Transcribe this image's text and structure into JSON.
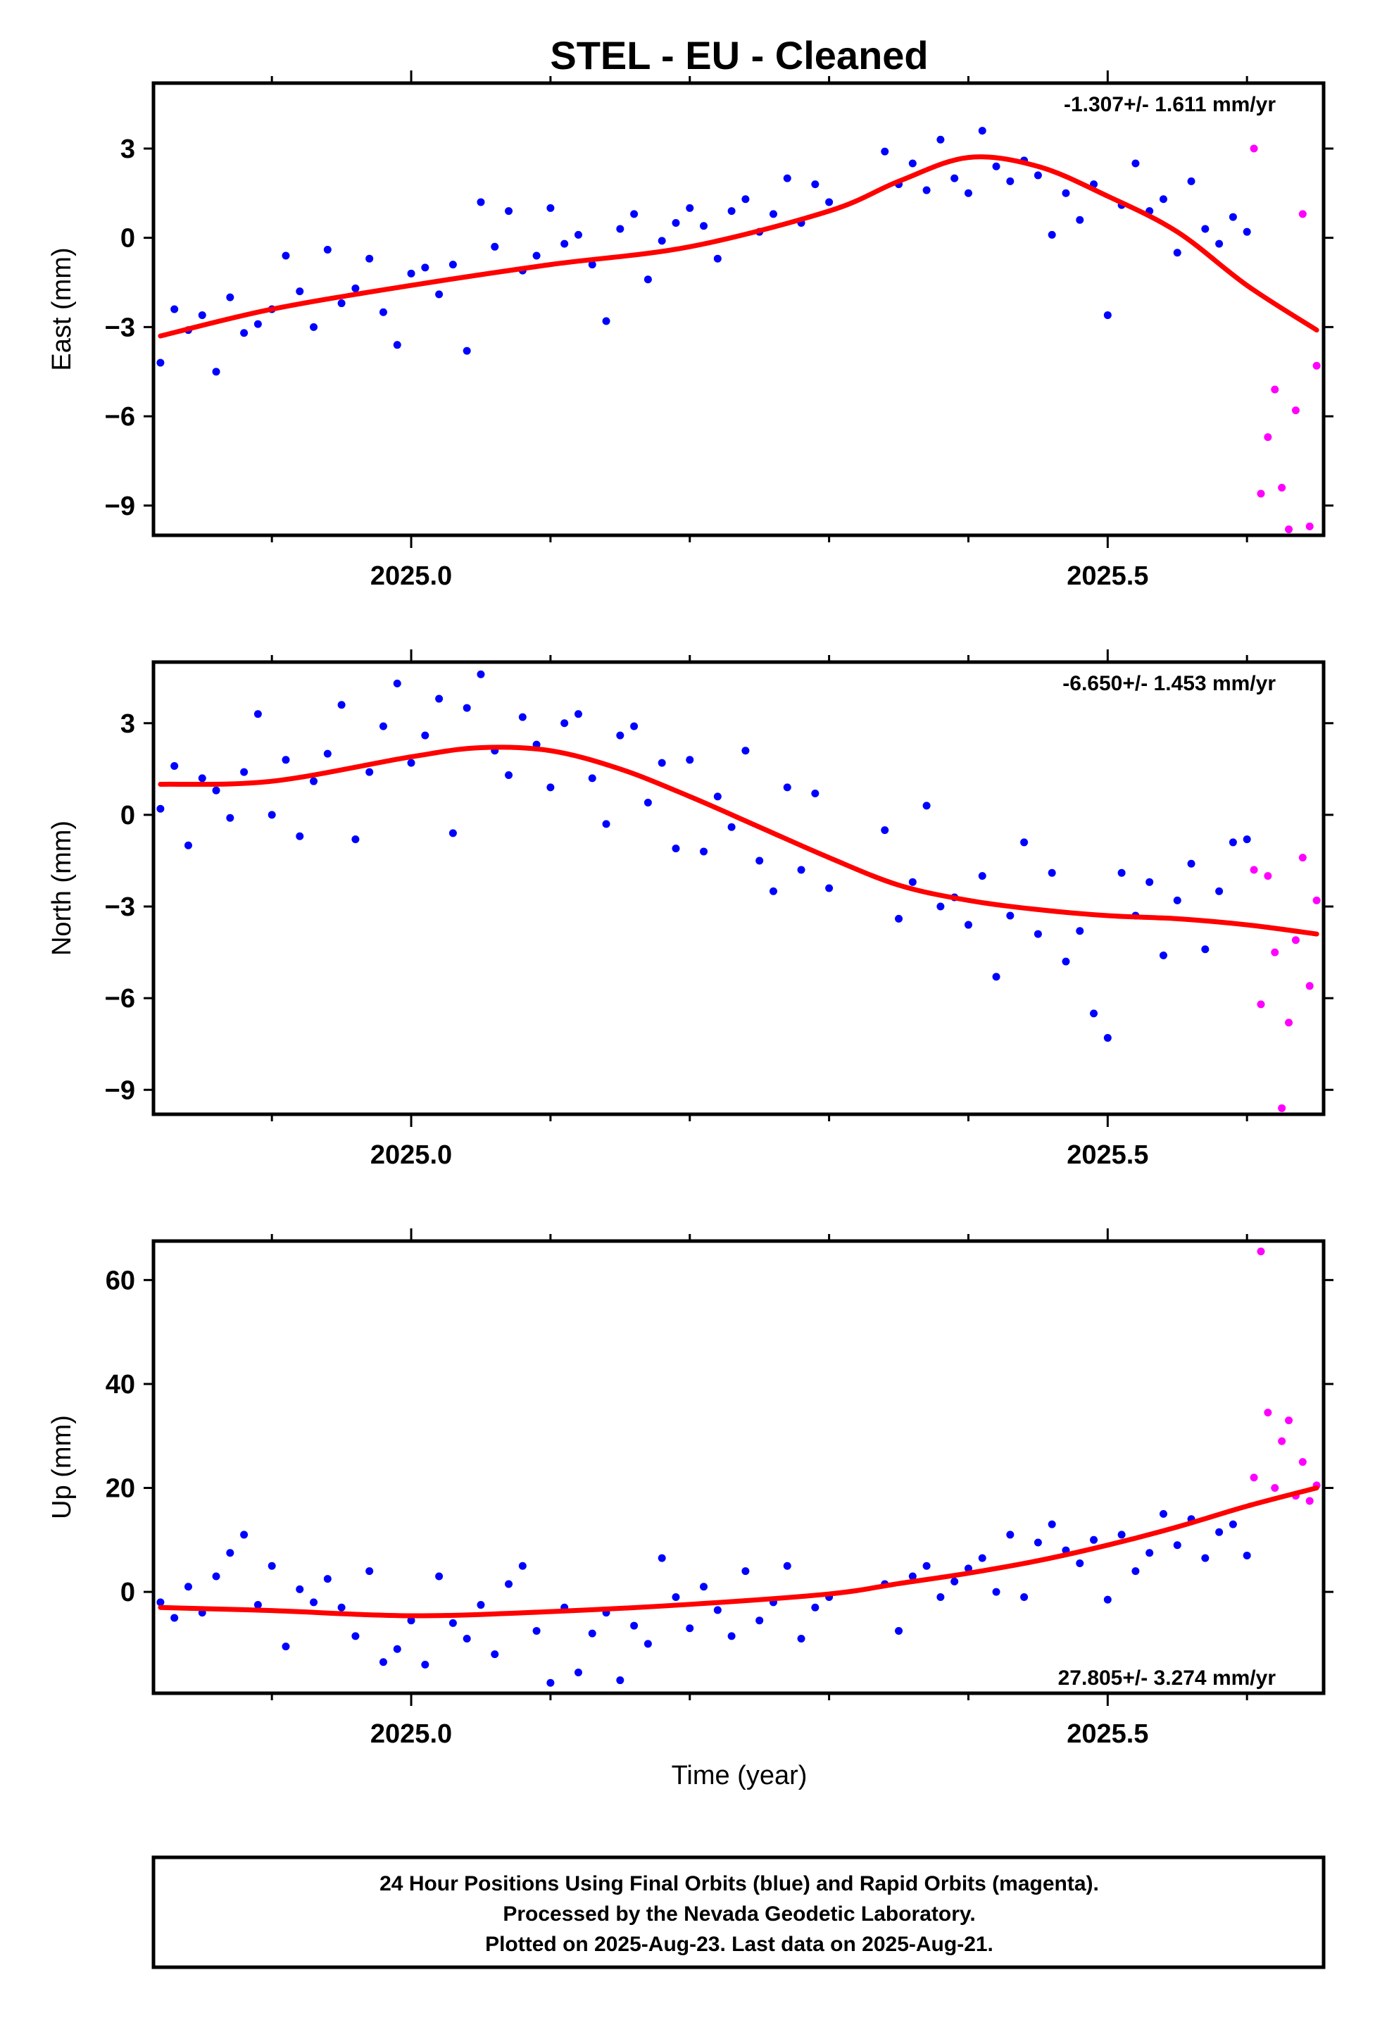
{
  "figure": {
    "title": "STEL  - EU - Cleaned",
    "xlabel": "Time (year)",
    "caption": [
      "24 Hour Positions Using Final Orbits (blue) and Rapid Orbits (magenta).",
      "Processed by the Nevada Geodetic Laboratory.",
      "Plotted on 2025-Aug-23. Last data on 2025-Aug-21."
    ]
  },
  "colors": {
    "final": "#0000ff",
    "rapid": "#ff00ff",
    "fit": "#ff0000",
    "frame": "#000000"
  },
  "chart_data": [
    {
      "type": "scatter",
      "ylabel": "East (mm)",
      "rate": "-1.307+/- 1.611 mm/yr",
      "rate_position": "top-right",
      "xlim": [
        2024.815,
        2025.655
      ],
      "ylim": [
        -10.0,
        5.2
      ],
      "yticks": [
        -9,
        -6,
        -3,
        0,
        3
      ],
      "xticks": [
        2025.0,
        2025.5
      ],
      "fit_x": [
        2024.82,
        2024.9,
        2025.0,
        2025.1,
        2025.2,
        2025.3,
        2025.35,
        2025.4,
        2025.45,
        2025.5,
        2025.55,
        2025.6,
        2025.65
      ],
      "fit_y": [
        -3.3,
        -2.4,
        -1.6,
        -0.9,
        -0.3,
        0.9,
        1.9,
        2.7,
        2.4,
        1.4,
        0.2,
        -1.6,
        -3.1
      ],
      "final_x": [
        2024.82,
        2024.83,
        2024.84,
        2024.85,
        2024.86,
        2024.87,
        2024.88,
        2024.89,
        2024.9,
        2024.91,
        2024.92,
        2024.93,
        2024.94,
        2024.95,
        2024.96,
        2024.97,
        2024.98,
        2024.99,
        2025.0,
        2025.01,
        2025.02,
        2025.03,
        2025.04,
        2025.05,
        2025.06,
        2025.07,
        2025.08,
        2025.09,
        2025.1,
        2025.11,
        2025.12,
        2025.13,
        2025.14,
        2025.15,
        2025.16,
        2025.17,
        2025.18,
        2025.19,
        2025.2,
        2025.21,
        2025.22,
        2025.23,
        2025.24,
        2025.25,
        2025.26,
        2025.27,
        2025.28,
        2025.29,
        2025.3,
        2025.34,
        2025.35,
        2025.36,
        2025.37,
        2025.38,
        2025.39,
        2025.4,
        2025.41,
        2025.42,
        2025.43,
        2025.44,
        2025.45,
        2025.46,
        2025.47,
        2025.48,
        2025.49,
        2025.5,
        2025.51,
        2025.52,
        2025.53,
        2025.54,
        2025.55,
        2025.56,
        2025.57,
        2025.58,
        2025.59,
        2025.6
      ],
      "final_y": [
        -4.2,
        -2.4,
        -3.1,
        -2.6,
        -4.5,
        -2.0,
        -3.2,
        -2.9,
        -2.4,
        -0.6,
        -1.8,
        -3.0,
        -0.4,
        -2.2,
        -1.7,
        -0.7,
        -2.5,
        -3.6,
        -1.2,
        -1.0,
        -1.9,
        -0.9,
        -3.8,
        1.2,
        -0.3,
        0.9,
        -1.1,
        -0.6,
        1.0,
        -0.2,
        0.1,
        -0.9,
        -2.8,
        0.3,
        0.8,
        -1.4,
        -0.1,
        0.5,
        1.0,
        0.4,
        -0.7,
        0.9,
        1.3,
        0.2,
        0.8,
        2.0,
        0.5,
        1.8,
        1.2,
        2.9,
        1.8,
        2.5,
        1.6,
        3.3,
        2.0,
        1.5,
        3.6,
        2.4,
        1.9,
        2.6,
        2.1,
        0.1,
        1.5,
        0.6,
        1.8,
        -2.6,
        1.1,
        2.5,
        0.9,
        1.3,
        -0.5,
        1.9,
        0.3,
        -0.2,
        0.7,
        0.2
      ],
      "rapid_x": [
        2025.605,
        2025.61,
        2025.615,
        2025.62,
        2025.625,
        2025.63,
        2025.635,
        2025.64,
        2025.645,
        2025.65
      ],
      "rapid_y": [
        3.0,
        -8.6,
        -6.7,
        -5.1,
        -8.4,
        -9.8,
        -5.8,
        0.8,
        -9.7,
        -4.3
      ]
    },
    {
      "type": "scatter",
      "ylabel": "North (mm)",
      "rate": "-6.650+/- 1.453 mm/yr",
      "rate_position": "top-right",
      "xlim": [
        2024.815,
        2025.655
      ],
      "ylim": [
        -9.8,
        5.0
      ],
      "yticks": [
        -9,
        -6,
        -3,
        0,
        3
      ],
      "xticks": [
        2025.0,
        2025.5
      ],
      "fit_x": [
        2024.82,
        2024.9,
        2025.0,
        2025.05,
        2025.1,
        2025.15,
        2025.2,
        2025.25,
        2025.3,
        2025.35,
        2025.4,
        2025.45,
        2025.5,
        2025.55,
        2025.6,
        2025.65
      ],
      "fit_y": [
        1.0,
        1.1,
        1.9,
        2.2,
        2.1,
        1.5,
        0.6,
        -0.4,
        -1.4,
        -2.3,
        -2.8,
        -3.1,
        -3.3,
        -3.4,
        -3.6,
        -3.9
      ],
      "final_x": [
        2024.82,
        2024.83,
        2024.84,
        2024.85,
        2024.86,
        2024.87,
        2024.88,
        2024.89,
        2024.9,
        2024.91,
        2024.92,
        2024.93,
        2024.94,
        2024.95,
        2024.96,
        2024.97,
        2024.98,
        2024.99,
        2025.0,
        2025.01,
        2025.02,
        2025.03,
        2025.04,
        2025.05,
        2025.06,
        2025.07,
        2025.08,
        2025.09,
        2025.1,
        2025.11,
        2025.12,
        2025.13,
        2025.14,
        2025.15,
        2025.16,
        2025.17,
        2025.18,
        2025.19,
        2025.2,
        2025.21,
        2025.22,
        2025.23,
        2025.24,
        2025.25,
        2025.26,
        2025.27,
        2025.28,
        2025.29,
        2025.3,
        2025.34,
        2025.35,
        2025.36,
        2025.37,
        2025.38,
        2025.39,
        2025.4,
        2025.41,
        2025.42,
        2025.43,
        2025.44,
        2025.45,
        2025.46,
        2025.47,
        2025.48,
        2025.49,
        2025.5,
        2025.51,
        2025.52,
        2025.53,
        2025.54,
        2025.55,
        2025.56,
        2025.57,
        2025.58,
        2025.59,
        2025.6
      ],
      "final_y": [
        0.2,
        1.6,
        -1.0,
        1.2,
        0.8,
        -0.1,
        1.4,
        3.3,
        0.0,
        1.8,
        -0.7,
        1.1,
        2.0,
        3.6,
        -0.8,
        1.4,
        2.9,
        4.3,
        1.7,
        2.6,
        3.8,
        -0.6,
        3.5,
        4.6,
        2.1,
        1.3,
        3.2,
        2.3,
        0.9,
        3.0,
        3.3,
        1.2,
        -0.3,
        2.6,
        2.9,
        0.4,
        1.7,
        -1.1,
        1.8,
        -1.2,
        0.6,
        -0.4,
        2.1,
        -1.5,
        -2.5,
        0.9,
        -1.8,
        0.7,
        -2.4,
        -0.5,
        -3.4,
        -2.2,
        0.3,
        -3.0,
        -2.7,
        -3.6,
        -2.0,
        -5.3,
        -3.3,
        -0.9,
        -3.9,
        -1.9,
        -4.8,
        -3.8,
        -6.5,
        -7.3,
        -1.9,
        -3.3,
        -2.2,
        -4.6,
        -2.8,
        -1.6,
        -4.4,
        -2.5,
        -0.9,
        -0.8
      ],
      "rapid_x": [
        2025.605,
        2025.61,
        2025.615,
        2025.62,
        2025.625,
        2025.63,
        2025.635,
        2025.64,
        2025.645,
        2025.65
      ],
      "rapid_y": [
        -1.8,
        -6.2,
        -2.0,
        -4.5,
        -9.6,
        -6.8,
        -4.1,
        -1.4,
        -5.6,
        -2.8
      ]
    },
    {
      "type": "scatter",
      "ylabel": "Up (mm)",
      "rate": "27.805+/- 3.274 mm/yr",
      "rate_position": "bottom-right",
      "xlim": [
        2024.815,
        2025.655
      ],
      "ylim": [
        -19.5,
        67.5
      ],
      "yticks": [
        0,
        20,
        40,
        60
      ],
      "xticks": [
        2025.0,
        2025.5
      ],
      "fit_x": [
        2024.82,
        2024.9,
        2025.0,
        2025.1,
        2025.2,
        2025.3,
        2025.35,
        2025.4,
        2025.45,
        2025.5,
        2025.55,
        2025.6,
        2025.65
      ],
      "fit_y": [
        -3.0,
        -3.6,
        -4.6,
        -3.8,
        -2.4,
        -0.4,
        1.6,
        3.6,
        6.0,
        9.0,
        12.5,
        16.5,
        20.0
      ],
      "final_x": [
        2024.82,
        2024.83,
        2024.84,
        2024.85,
        2024.86,
        2024.87,
        2024.88,
        2024.89,
        2024.9,
        2024.91,
        2024.92,
        2024.93,
        2024.94,
        2024.95,
        2024.96,
        2024.97,
        2024.98,
        2024.99,
        2025.0,
        2025.01,
        2025.02,
        2025.03,
        2025.04,
        2025.05,
        2025.06,
        2025.07,
        2025.08,
        2025.09,
        2025.1,
        2025.11,
        2025.12,
        2025.13,
        2025.14,
        2025.15,
        2025.16,
        2025.17,
        2025.18,
        2025.19,
        2025.2,
        2025.21,
        2025.22,
        2025.23,
        2025.24,
        2025.25,
        2025.26,
        2025.27,
        2025.28,
        2025.29,
        2025.3,
        2025.34,
        2025.35,
        2025.36,
        2025.37,
        2025.38,
        2025.39,
        2025.4,
        2025.41,
        2025.42,
        2025.43,
        2025.44,
        2025.45,
        2025.46,
        2025.47,
        2025.48,
        2025.49,
        2025.5,
        2025.51,
        2025.52,
        2025.53,
        2025.54,
        2025.55,
        2025.56,
        2025.57,
        2025.58,
        2025.59,
        2025.6
      ],
      "final_y": [
        -2.0,
        -5.0,
        1.0,
        -4.0,
        3.0,
        7.5,
        11.0,
        -2.5,
        5.0,
        -10.5,
        0.5,
        -2.0,
        2.5,
        -3.0,
        -8.5,
        4.0,
        -13.5,
        -11.0,
        -5.5,
        -14.0,
        3.0,
        -6.0,
        -9.0,
        -2.5,
        -12.0,
        1.5,
        5.0,
        -7.5,
        -17.5,
        -3.0,
        -15.5,
        -8.0,
        -4.0,
        -17.0,
        -6.5,
        -10.0,
        6.5,
        -1.0,
        -7.0,
        1.0,
        -3.5,
        -8.5,
        4.0,
        -5.5,
        -2.0,
        5.0,
        -9.0,
        -3.0,
        -1.0,
        1.5,
        -7.5,
        3.0,
        5.0,
        -1.0,
        2.0,
        4.5,
        6.5,
        0.0,
        11.0,
        -1.0,
        9.5,
        13.0,
        8.0,
        5.5,
        10.0,
        -1.5,
        11.0,
        4.0,
        7.5,
        15.0,
        9.0,
        14.0,
        6.5,
        11.5,
        13.0,
        7.0
      ],
      "rapid_x": [
        2025.605,
        2025.61,
        2025.615,
        2025.62,
        2025.625,
        2025.63,
        2025.635,
        2025.64,
        2025.645,
        2025.65
      ],
      "rapid_y": [
        22.0,
        65.5,
        34.5,
        20.0,
        29.0,
        33.0,
        18.5,
        25.0,
        17.5,
        20.5
      ]
    }
  ]
}
